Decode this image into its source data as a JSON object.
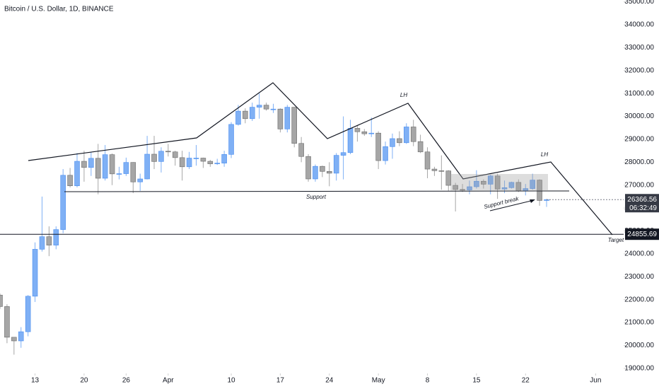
{
  "chart_data": {
    "type": "candlestick",
    "title": "Bitcoin / U.S. Dollar, 1D, BINANCE",
    "x": [
      "Mar 8",
      "Mar 9",
      "Mar 10",
      "Mar 11",
      "Mar 12",
      "Mar 13",
      "Mar 14",
      "Mar 15",
      "Mar 16",
      "Mar 17",
      "Mar 18",
      "Mar 19",
      "Mar 20",
      "Mar 21",
      "Mar 22",
      "Mar 23",
      "Mar 24",
      "Mar 25",
      "Mar 26",
      "Mar 27",
      "Mar 28",
      "Mar 29",
      "Mar 30",
      "Mar 31",
      "Apr 1",
      "Apr 2",
      "Apr 3",
      "Apr 4",
      "Apr 5",
      "Apr 6",
      "Apr 7",
      "Apr 8",
      "Apr 9",
      "Apr 10",
      "Apr 11",
      "Apr 12",
      "Apr 13",
      "Apr 14",
      "Apr 15",
      "Apr 16",
      "Apr 17",
      "Apr 18",
      "Apr 19",
      "Apr 20",
      "Apr 21",
      "Apr 22",
      "Apr 23",
      "Apr 24",
      "Apr 25",
      "Apr 26",
      "Apr 27",
      "Apr 28",
      "Apr 29",
      "Apr 30",
      "May 1",
      "May 2",
      "May 3",
      "May 4",
      "May 5",
      "May 6",
      "May 7",
      "May 8",
      "May 9",
      "May 10",
      "May 11",
      "May 12",
      "May 13",
      "May 14",
      "May 15",
      "May 16",
      "May 17",
      "May 18",
      "May 19",
      "May 20",
      "May 21",
      "May 22",
      "May 23",
      "May 24",
      "May 25",
      "May 26",
      "May 27",
      "May 28",
      "May 29",
      "May 30",
      "May 31",
      "Jun 1",
      "Jun 2",
      "Jun 3",
      "Jun 4"
    ],
    "open": [
      22200,
      21700,
      20360,
      20200,
      20600,
      22150,
      24200,
      24750,
      24380,
      25060,
      27430,
      26970,
      28040,
      27770,
      28170,
      27300,
      28330,
      27490,
      27500,
      27990,
      27140,
      27270,
      28350,
      28030,
      28480,
      28450,
      28200,
      27800,
      28180,
      28180,
      28040,
      27930,
      27960,
      28340,
      29650,
      30230,
      29900,
      30400,
      30490,
      30320,
      30320,
      29450,
      30400,
      28820,
      28250,
      27270,
      27820,
      27600,
      27520,
      28300,
      28420,
      29480,
      29330,
      29240,
      29270,
      28070,
      28680,
      29030,
      28850,
      29540,
      28900,
      28450,
      27700,
      27630,
      27620,
      26990,
      26810,
      26790,
      26930,
      27170,
      27040,
      27400,
      26830,
      26890,
      27120,
      26750,
      26850,
      27220,
      26330,
      null,
      null,
      null,
      null,
      null,
      null,
      null,
      null,
      null,
      null
    ],
    "high": [
      22270,
      21800,
      20370,
      20800,
      22200,
      24500,
      26500,
      25200,
      25200,
      27700,
      27750,
      28400,
      28500,
      28450,
      28800,
      28750,
      28380,
      27800,
      28200,
      28000,
      27500,
      29150,
      29150,
      28650,
      28800,
      28500,
      28500,
      28450,
      28750,
      28200,
      28100,
      28150,
      28500,
      29750,
      30500,
      30350,
      30600,
      31000,
      30600,
      30550,
      30350,
      30500,
      30400,
      29100,
      28350,
      27900,
      27850,
      28000,
      28400,
      30000,
      29850,
      29600,
      29450,
      29950,
      29350,
      28900,
      29250,
      29350,
      29700,
      29850,
      29200,
      28650,
      27800,
      28300,
      27650,
      27100,
      27050,
      27200,
      27650,
      27250,
      27450,
      27500,
      27200,
      27150,
      27250,
      27050,
      27500,
      27250,
      26400,
      null,
      null,
      null,
      null,
      null,
      null,
      null,
      null,
      null,
      null
    ],
    "low": [
      21600,
      20100,
      19600,
      19900,
      20400,
      21900,
      24100,
      23900,
      24200,
      24900,
      26900,
      26900,
      27150,
      27400,
      26600,
      27200,
      27000,
      27250,
      27400,
      26650,
      26750,
      27250,
      27700,
      27550,
      28250,
      27850,
      27200,
      27700,
      27850,
      27750,
      27800,
      27880,
      27800,
      28180,
      29600,
      29700,
      29800,
      29900,
      30250,
      30150,
      29300,
      29300,
      28650,
      28000,
      27150,
      27150,
      27350,
      26950,
      27200,
      27250,
      28350,
      28900,
      29150,
      29100,
      27700,
      27900,
      28150,
      28700,
      28800,
      28700,
      28400,
      27300,
      27400,
      26800,
      26750,
      25850,
      26700,
      26600,
      26850,
      26850,
      26600,
      26400,
      26650,
      26850,
      26700,
      26550,
      26800,
      26100,
      26050,
      null,
      null,
      null,
      null,
      null,
      null,
      null,
      null,
      null,
      null
    ],
    "close": [
      21700,
      20360,
      20200,
      20600,
      22150,
      24200,
      24750,
      24380,
      25060,
      27430,
      26970,
      28040,
      27770,
      28170,
      27300,
      28330,
      27490,
      27500,
      27990,
      27140,
      27270,
      28350,
      28030,
      28480,
      28450,
      28200,
      27800,
      28180,
      28180,
      28040,
      27930,
      27960,
      28340,
      29650,
      30230,
      29900,
      30400,
      30490,
      30320,
      30320,
      29450,
      30400,
      28820,
      28250,
      27270,
      27820,
      27600,
      27520,
      28300,
      28420,
      29480,
      29330,
      29240,
      29270,
      28070,
      28680,
      29030,
      28850,
      29540,
      28900,
      28450,
      27700,
      27630,
      27620,
      26990,
      26810,
      26790,
      26930,
      27170,
      27040,
      27400,
      26830,
      26890,
      27120,
      26750,
      26850,
      27220,
      26330,
      26366.56,
      null,
      null,
      null,
      null,
      null,
      null,
      null,
      null,
      null,
      null
    ],
    "up_color": "#7fb0f5",
    "down_color": "#a6a6a6",
    "ylim": [
      18780,
      35080
    ],
    "yticks": [
      {
        "value": 19000,
        "label": "19000.00"
      },
      {
        "value": 20000,
        "label": "20000.00"
      },
      {
        "value": 21000,
        "label": "21000.00"
      },
      {
        "value": 22000,
        "label": "22000.00"
      },
      {
        "value": 23000,
        "label": "23000.00"
      },
      {
        "value": 24000,
        "label": "24000.00"
      },
      {
        "value": 25000,
        "label": "25000.00"
      },
      {
        "value": 26000,
        "label": "26000.00"
      },
      {
        "value": 27000,
        "label": "27000.00"
      },
      {
        "value": 28000,
        "label": "28000.00"
      },
      {
        "value": 29000,
        "label": "29000.00"
      },
      {
        "value": 30000,
        "label": "30000.00"
      },
      {
        "value": 31000,
        "label": "31000.00"
      },
      {
        "value": 32000,
        "label": "32000.00"
      },
      {
        "value": 33000,
        "label": "33000.00"
      },
      {
        "value": 34000,
        "label": "34000.00"
      },
      {
        "value": 35000,
        "label": "35000.00"
      }
    ],
    "xticks": [
      {
        "value": "Mar 13",
        "label": "13"
      },
      {
        "value": "Mar 20",
        "label": "20"
      },
      {
        "value": "Mar 26",
        "label": "26"
      },
      {
        "value": "Apr 1",
        "label": "Apr"
      },
      {
        "value": "Apr 10",
        "label": "10"
      },
      {
        "value": "Apr 17",
        "label": "17"
      },
      {
        "value": "Apr 24",
        "label": "24"
      },
      {
        "value": "May 1",
        "label": "May"
      },
      {
        "value": "May 8",
        "label": "8"
      },
      {
        "value": "May 15",
        "label": "15"
      },
      {
        "value": "May 22",
        "label": "22"
      },
      {
        "value": "Jun 1",
        "label": "Jun"
      }
    ],
    "target_price": 24855.69,
    "countdown": "06:32:49",
    "annotations": [
      "Support",
      "Support break",
      "LH",
      "LH",
      "Target"
    ]
  }
}
